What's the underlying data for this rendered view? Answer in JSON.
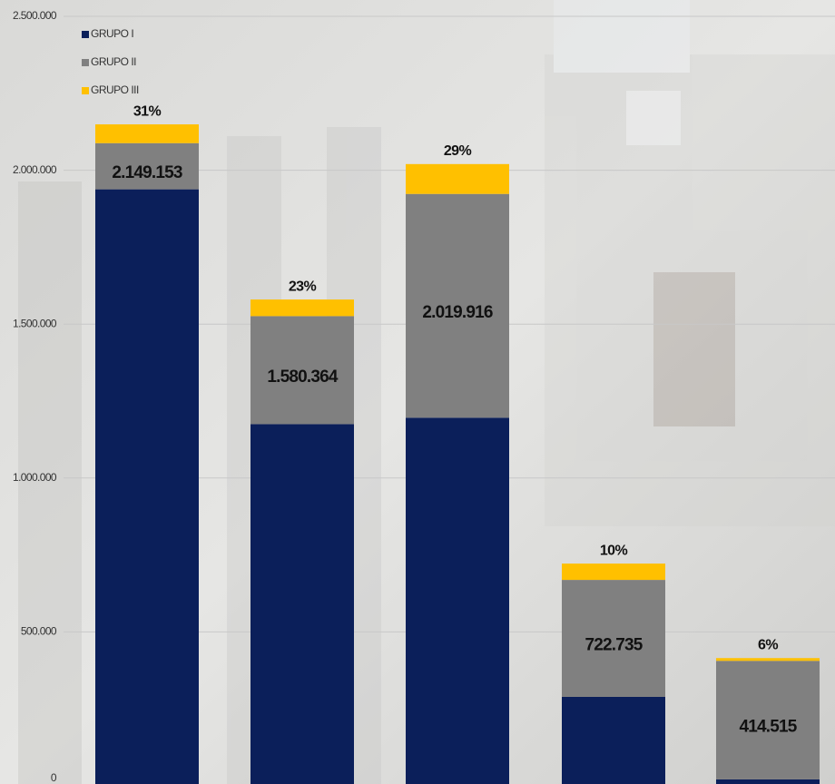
{
  "chart_data": {
    "type": "stacked_bar",
    "categories": [
      null,
      null,
      null,
      null,
      null
    ],
    "series": [
      {
        "name": "GRUPO I",
        "color": "#0b1f5a",
        "values": [
          1938000,
          1175000,
          1196000,
          289000,
          21000
        ]
      },
      {
        "name": "GRUPO II",
        "color": "#808080",
        "values": [
          150000,
          351000,
          727000,
          380000,
          385000
        ]
      },
      {
        "name": "GRUPO III",
        "color": "#ffc000",
        "values": [
          61000,
          54000,
          97000,
          53000,
          9000
        ]
      }
    ],
    "totals": [
      {
        "value": 2149153,
        "label": "2.149.153"
      },
      {
        "value": 1580364,
        "label": "1.580.364"
      },
      {
        "value": 2019916,
        "label": "2.019.916"
      },
      {
        "value": 722735,
        "label": "722.735"
      },
      {
        "value": 414515,
        "label": "414.515"
      }
    ],
    "shares": [
      {
        "value": 31,
        "label": "31%"
      },
      {
        "value": 23,
        "label": "23%"
      },
      {
        "value": 29,
        "label": "29%"
      },
      {
        "value": 10,
        "label": "10%"
      },
      {
        "value": 6,
        "label": "6%"
      }
    ],
    "ylim": [
      0,
      2500000
    ],
    "yticks": [
      0,
      {
        "value": 500000,
        "label": "500.000"
      },
      {
        "value": 1000000,
        "label": "1.000.000"
      },
      {
        "value": 1500000,
        "label": "1.500.000"
      },
      {
        "value": 2000000,
        "label": "2.000.000"
      },
      {
        "value": 2500000,
        "label": "2.500.000"
      }
    ],
    "grid": true,
    "legend": "top-left"
  }
}
